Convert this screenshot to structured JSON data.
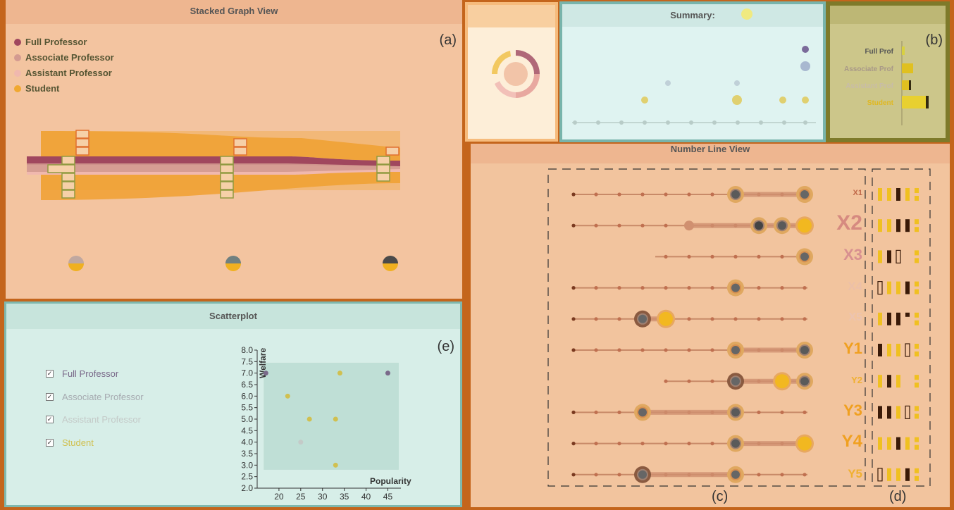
{
  "stacked": {
    "title": "Stacked Graph View",
    "label": "(a)",
    "legend": [
      {
        "name": "Full Professor",
        "color": "#a0475e"
      },
      {
        "name": "Associate Professor",
        "color": "#d39a90"
      },
      {
        "name": "Assistant Professor",
        "color": "#f0b8ae"
      },
      {
        "name": "Student",
        "color": "#f0a830"
      }
    ]
  },
  "ring": {},
  "summary": {
    "title": "Summary:"
  },
  "bars": {
    "label": "(b)",
    "items": [
      {
        "name": "Full Prof",
        "value": 0.05,
        "color": "#555"
      },
      {
        "name": "Associate Prof",
        "value": 0.35,
        "color": "#a89888"
      },
      {
        "name": "Assistant Prof",
        "value": 0.35,
        "color": "#c8bca8"
      },
      {
        "name": "Student",
        "value": 0.95,
        "color": "#e0b820"
      }
    ]
  },
  "numline": {
    "title": "Number Line View",
    "label_c": "(c)",
    "label_d": "(d)",
    "rows": [
      "X1",
      "X2",
      "X3",
      "X4",
      "X5",
      "Y1",
      "Y2",
      "Y3",
      "Y4",
      "Y5"
    ]
  },
  "scatter": {
    "title": "Scatterplot",
    "label": "(e)",
    "filters": [
      {
        "name": "Full Professor",
        "color": "#7a6a8a"
      },
      {
        "name": "Associate Professor",
        "color": "#a6aab0"
      },
      {
        "name": "Assistant Professor",
        "color": "#c4cac8"
      },
      {
        "name": "Student",
        "color": "#d0c050"
      }
    ]
  },
  "chart_data": {
    "type": "scatter",
    "title": "",
    "xlabel": "Popularity",
    "ylabel": "Welfare",
    "xlim": [
      15,
      48
    ],
    "ylim": [
      2.0,
      8.0
    ],
    "xticks": [
      "20",
      "25",
      "30",
      "35",
      "40",
      "45"
    ],
    "yticks": [
      "2.0",
      "2.5",
      "3.0",
      "3.5",
      "4.0",
      "4.5",
      "5.0",
      "5.5",
      "6.0",
      "6.5",
      "7.0",
      "7.5",
      "8.0"
    ],
    "points": [
      {
        "x": 17,
        "y": 7.0,
        "series": "Full Professor"
      },
      {
        "x": 45,
        "y": 7.0,
        "series": "Full Professor"
      },
      {
        "x": 25,
        "y": 4.0,
        "series": "Assistant Professor"
      },
      {
        "x": 22,
        "y": 6.0,
        "series": "Student"
      },
      {
        "x": 27,
        "y": 5.0,
        "series": "Student"
      },
      {
        "x": 33,
        "y": 5.0,
        "series": "Student"
      },
      {
        "x": 34,
        "y": 7.0,
        "series": "Student"
      },
      {
        "x": 33,
        "y": 3.0,
        "series": "Student"
      }
    ]
  }
}
